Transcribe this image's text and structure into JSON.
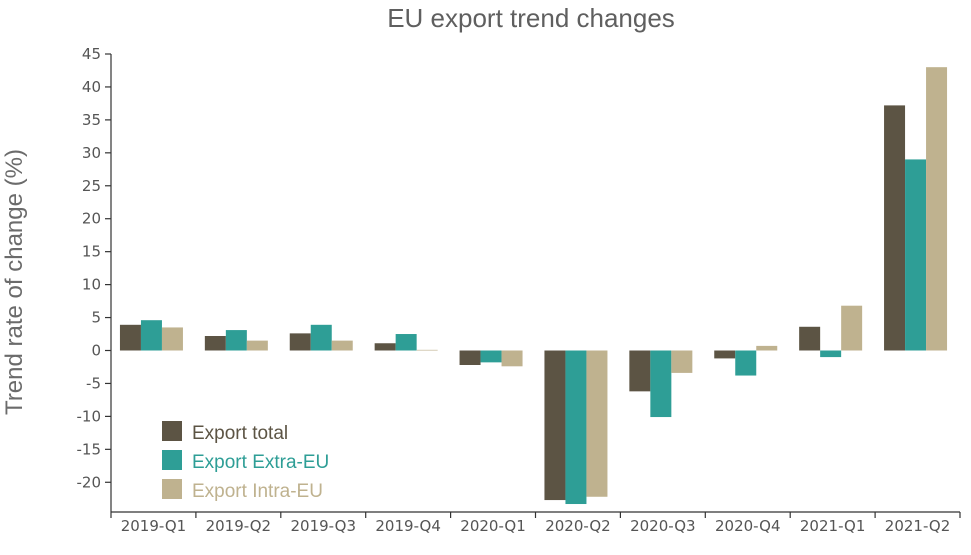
{
  "chart_data": {
    "type": "bar",
    "title": "EU export trend changes",
    "xlabel": "",
    "ylabel": "Trend rate of change (%)",
    "ylim": [
      -24,
      45
    ],
    "yticks": [
      45,
      40,
      35,
      30,
      25,
      20,
      15,
      10,
      5,
      0,
      -5,
      -10,
      -15,
      -20
    ],
    "categories": [
      "2019-Q1",
      "2019-Q2",
      "2019-Q3",
      "2019-Q4",
      "2020-Q1",
      "2020-Q2",
      "2020-Q3",
      "2020-Q4",
      "2021-Q1",
      "2021-Q2"
    ],
    "series": [
      {
        "name": "Export total",
        "color": "#5c5444",
        "values": [
          3.9,
          2.2,
          2.6,
          1.1,
          -2.2,
          -22.7,
          -6.2,
          -1.2,
          3.6,
          37.2
        ]
      },
      {
        "name": "Export Extra-EU",
        "color": "#2e9e96",
        "values": [
          4.6,
          3.1,
          3.9,
          2.5,
          -1.8,
          -23.3,
          -10.1,
          -3.8,
          -1.0,
          29.0
        ]
      },
      {
        "name": "Export Intra-EU",
        "color": "#bfb28f",
        "values": [
          3.5,
          1.5,
          1.5,
          0.1,
          -2.4,
          -22.2,
          -3.4,
          0.7,
          6.8,
          43.0
        ]
      }
    ],
    "legend_position": "bottom-left",
    "grid": false
  }
}
